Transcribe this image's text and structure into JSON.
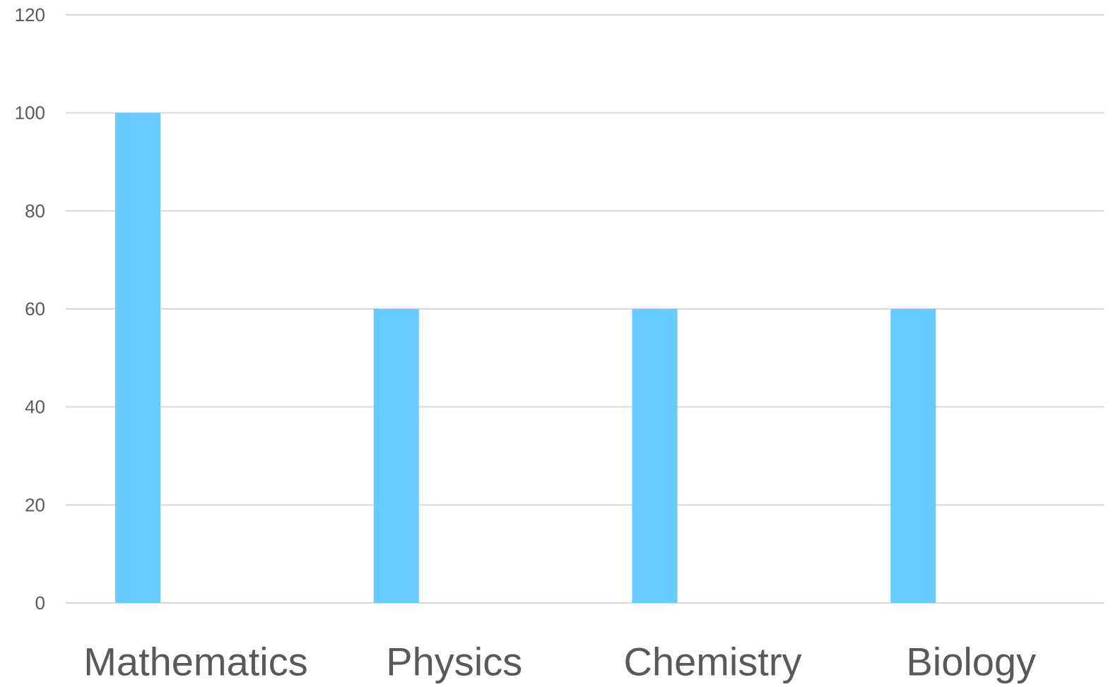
{
  "chart_data": {
    "type": "bar",
    "categories": [
      "Mathematics",
      "Physics",
      "Chemistry",
      "Biology"
    ],
    "values": [
      100,
      60,
      60,
      60
    ],
    "title": "",
    "xlabel": "",
    "ylabel": "",
    "ylim": [
      0,
      120
    ],
    "yticks": [
      0,
      20,
      40,
      60,
      80,
      100,
      120
    ],
    "grid": true,
    "legend": "none",
    "bar_color": "#66cbff"
  }
}
